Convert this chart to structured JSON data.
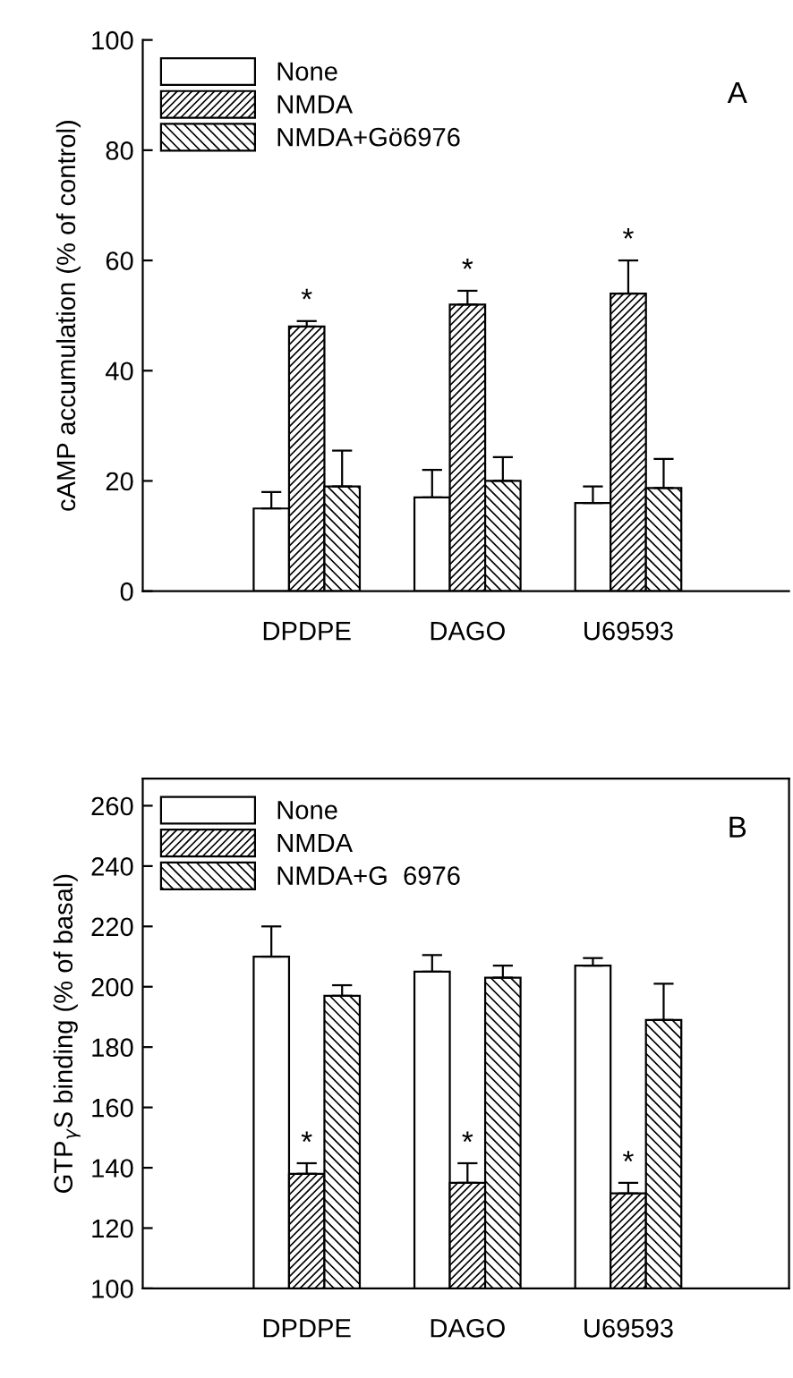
{
  "chart_data": [
    {
      "type": "bar",
      "ylabel": "cAMP accumulation (% of control)",
      "categories": [
        "DPDPE",
        "DAGO",
        "U69593"
      ],
      "series": [
        {
          "name": "None",
          "color": "#ffffff",
          "values": [
            15,
            17,
            16
          ],
          "errors": [
            [
              15,
              18
            ],
            [
              17,
              22
            ],
            [
              16,
              19
            ]
          ]
        },
        {
          "name": "NMDA",
          "color": "#000000",
          "values": [
            48,
            52,
            54
          ],
          "errors": [
            [
              48,
              49
            ],
            [
              52,
              54.5
            ],
            [
              54,
              60
            ]
          ]
        },
        {
          "name": "NMDA+Gö6976",
          "color": "#000000",
          "values": [
            19,
            20,
            18.7
          ],
          "errors": [
            [
              19,
              25.5
            ],
            [
              20,
              24.3
            ],
            [
              18.7,
              24
            ]
          ]
        }
      ],
      "ylim": [
        0,
        100
      ],
      "yticks": [
        0,
        20,
        40,
        60,
        80,
        100
      ],
      "legend": "top left",
      "grid": false,
      "annotations": [
        "A",
        "*",
        "*",
        "*"
      ]
    },
    {
      "type": "bar",
      "ylabel": "GTP$_{γ}$S binding (% of basal)",
      "categories": [
        "DPDPE",
        "DAGO",
        "U69593"
      ],
      "series": [
        {
          "name": "None",
          "color": "#ffffff",
          "values": [
            210,
            205,
            207
          ],
          "errors": [
            [
              210,
              220
            ],
            [
              205,
              210.5
            ],
            [
              207,
              209.5
            ]
          ]
        },
        {
          "name": "NMDA",
          "color": "#000000",
          "values": [
            138,
            135,
            131.5
          ],
          "errors": [
            [
              138,
              141.5
            ],
            [
              135,
              141.5
            ],
            [
              131.5,
              135
            ]
          ]
        },
        {
          "name": "NMDA+G  6976",
          "color": "#000000",
          "values": [
            197,
            203,
            189
          ],
          "errors": [
            [
              197,
              200.5
            ],
            [
              203,
              207
            ],
            [
              189,
              201
            ]
          ]
        }
      ],
      "ylim": [
        100,
        269
      ],
      "yticks": [
        100,
        120,
        140,
        160,
        180,
        200,
        220,
        240,
        260
      ],
      "legend": "top left",
      "grid": false,
      "annotations": [
        "B",
        "*",
        "*",
        "*"
      ]
    }
  ]
}
